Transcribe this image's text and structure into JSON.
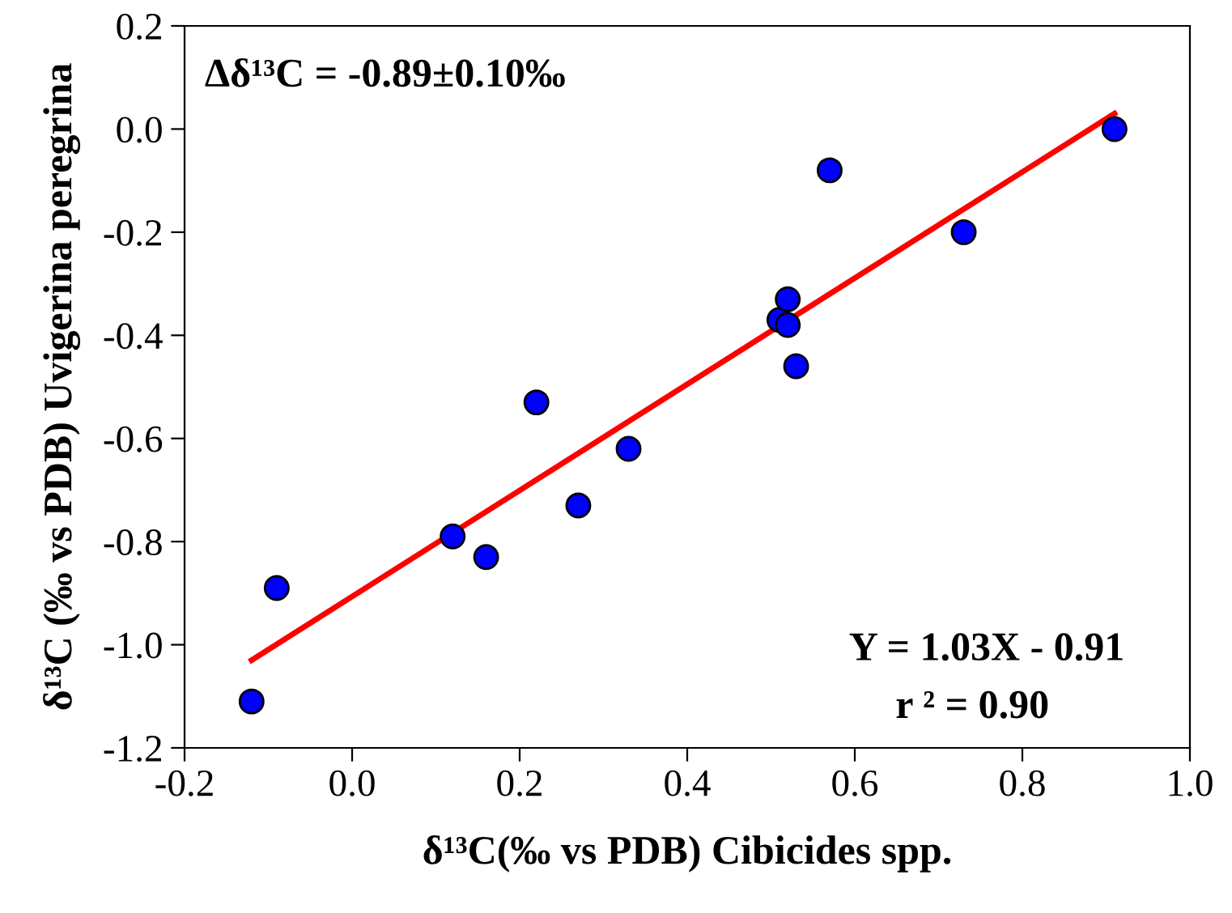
{
  "chart_data": {
    "type": "scatter",
    "xlabel": "δ¹³C(‰ vs PDB) Cibicides spp.",
    "ylabel": "δ¹³C (‰ vs PDB) Uvigerina peregrina",
    "xlim": [
      -0.2,
      1.0
    ],
    "ylim": [
      -1.2,
      0.2
    ],
    "xticks": [
      -0.2,
      {
        "value": 0.0,
        "label": "0.0"
      },
      0.2,
      0.4,
      0.6,
      0.8,
      {
        "value": 1.0,
        "label": "1.0"
      }
    ],
    "yticks": [
      -1.2,
      {
        "value": -1.0,
        "label": "-1.0"
      },
      -0.8,
      -0.6,
      -0.4,
      -0.2,
      {
        "value": 0.0,
        "label": "0.0"
      },
      0.2
    ],
    "grid": false,
    "legend": false,
    "series": [
      {
        "color": "#0000ff",
        "marker": "circle",
        "x": [
          -0.12,
          -0.09,
          0.12,
          0.16,
          0.22,
          0.27,
          0.33,
          0.51,
          0.52,
          0.52,
          0.53,
          0.57,
          0.73,
          0.91
        ],
        "values": [
          -1.11,
          -0.89,
          -0.79,
          -0.83,
          -0.53,
          -0.73,
          -0.62,
          -0.37,
          -0.33,
          -0.38,
          -0.46,
          -0.08,
          -0.2,
          0.0
        ]
      },
      {
        "type": "line",
        "color": "#ff0000",
        "marker": "none",
        "line_style": "solid",
        "x": [
          -0.12,
          0.91
        ],
        "values": [
          -1.03,
          0.03
        ]
      }
    ],
    "annotations": [
      "Δδ¹³C = -0.89±0.10‰",
      "Y = 1.03X - 0.91",
      "r ² = 0.90"
    ]
  }
}
